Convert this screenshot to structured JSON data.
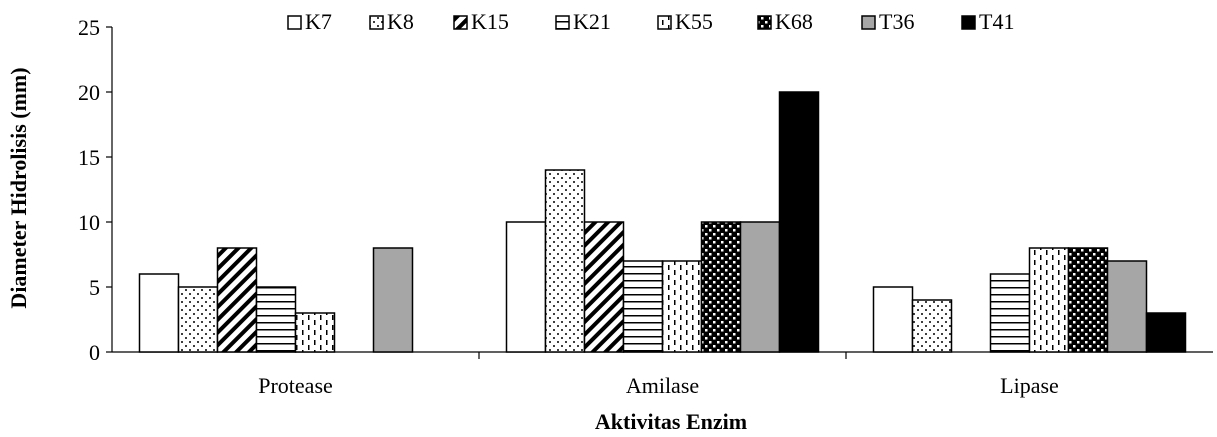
{
  "chart_data": {
    "type": "bar",
    "xlabel": "Aktivitas Enzim",
    "ylabel": "Diameter Hidrolisis (mm)",
    "ylim": [
      0,
      25
    ],
    "yticks": [
      "0",
      "5",
      "10",
      "15",
      "20",
      "25"
    ],
    "grid": false,
    "legend_position": "top",
    "categories": [
      "Protease",
      "Amilase",
      "Lipase"
    ],
    "series": [
      {
        "name": "K7",
        "pattern": "white",
        "values": [
          6,
          10,
          5
        ]
      },
      {
        "name": "K8",
        "pattern": "dots",
        "values": [
          5,
          14,
          4
        ]
      },
      {
        "name": "K15",
        "pattern": "diagonal",
        "values": [
          8,
          10,
          0
        ]
      },
      {
        "name": "K21",
        "pattern": "horizontal",
        "values": [
          5,
          7,
          6
        ]
      },
      {
        "name": "K55",
        "pattern": "dashed-vertical",
        "values": [
          3,
          7,
          8
        ]
      },
      {
        "name": "K68",
        "pattern": "checker",
        "values": [
          0,
          10,
          8
        ]
      },
      {
        "name": "T36",
        "pattern": "gray",
        "color": "#a6a6a6",
        "values": [
          8,
          10,
          7
        ]
      },
      {
        "name": "T41",
        "pattern": "black",
        "color": "#000000",
        "values": [
          0,
          20,
          3
        ]
      }
    ]
  }
}
